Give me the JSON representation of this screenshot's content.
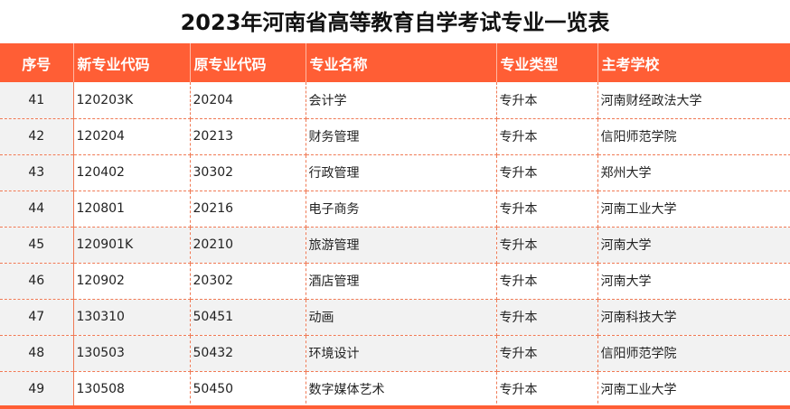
{
  "title": "2023年河南省高等教育自学考试专业一览表",
  "accent_color": "#ff5e35",
  "table": {
    "headers": {
      "seq": "序号",
      "new_code": "新专业代码",
      "old_code": "原专业代码",
      "name": "专业名称",
      "type": "专业类型",
      "school": "主考学校"
    },
    "rows": [
      {
        "seq": "41",
        "new_code": "120203K",
        "old_code": "20204",
        "name": "会计学",
        "type": "专升本",
        "school": "河南财经政法大学"
      },
      {
        "seq": "42",
        "new_code": "120204",
        "old_code": "20213",
        "name": "财务管理",
        "type": "专升本",
        "school": "信阳师范学院"
      },
      {
        "seq": "43",
        "new_code": "120402",
        "old_code": "30302",
        "name": "行政管理",
        "type": "专升本",
        "school": "郑州大学"
      },
      {
        "seq": "44",
        "new_code": "120801",
        "old_code": "20216",
        "name": "电子商务",
        "type": "专升本",
        "school": "河南工业大学"
      },
      {
        "seq": "45",
        "new_code": "120901K",
        "old_code": "20210",
        "name": "旅游管理",
        "type": "专升本",
        "school": "河南大学"
      },
      {
        "seq": "46",
        "new_code": "120902",
        "old_code": "20302",
        "name": "酒店管理",
        "type": "专升本",
        "school": "河南大学"
      },
      {
        "seq": "47",
        "new_code": "130310",
        "old_code": "50451",
        "name": "动画",
        "type": "专升本",
        "school": "河南科技大学"
      },
      {
        "seq": "48",
        "new_code": "130503",
        "old_code": "50432",
        "name": "环境设计",
        "type": "专升本",
        "school": "信阳师范学院"
      },
      {
        "seq": "49",
        "new_code": "130508",
        "old_code": "50450",
        "name": "数字媒体艺术",
        "type": "专升本",
        "school": "河南工业大学"
      }
    ]
  }
}
